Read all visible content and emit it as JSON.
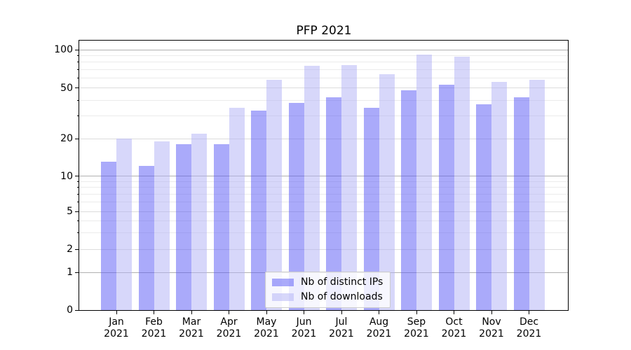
{
  "chart_data": {
    "type": "bar",
    "title": "PFP 2021",
    "categories": [
      "Jan",
      "Feb",
      "Mar",
      "Apr",
      "May",
      "Jun",
      "Jul",
      "Aug",
      "Sep",
      "Oct",
      "Nov",
      "Dec"
    ],
    "category_year": "2021",
    "series": [
      {
        "name": "Nb of distinct IPs",
        "color": "rgba(85,85,245,0.5)",
        "values": [
          13,
          12,
          18,
          18,
          33,
          38,
          42,
          35,
          48,
          53,
          37,
          42
        ]
      },
      {
        "name": "Nb of downloads",
        "color": "rgba(176,176,245,0.5)",
        "values": [
          20,
          19,
          22,
          35,
          58,
          75,
          76,
          64,
          91,
          88,
          56,
          58
        ]
      }
    ],
    "yscale": "symlog",
    "ylim": [
      0,
      120
    ],
    "yticks": [
      0,
      1,
      2,
      5,
      10,
      20,
      50,
      100
    ],
    "decade_ticks": [
      1,
      10,
      100
    ],
    "minor_gridlines": [
      3,
      4,
      6,
      7,
      8,
      9,
      30,
      40,
      60,
      70,
      80,
      90
    ],
    "grid": true,
    "legend_position": "lower center"
  }
}
